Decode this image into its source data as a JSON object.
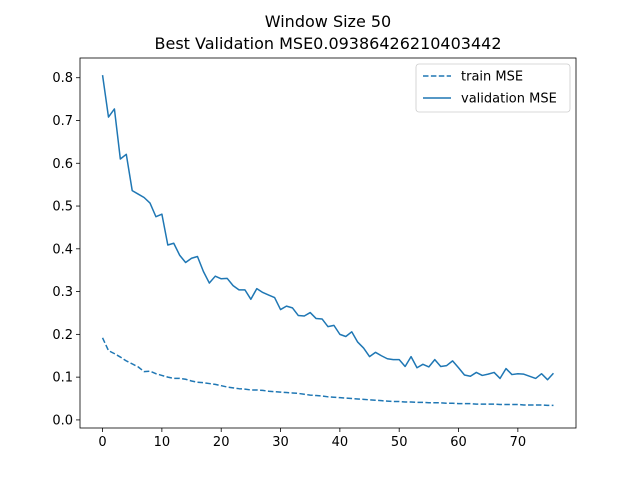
{
  "chart_data": {
    "type": "line",
    "title": "Window Size 50",
    "subtitle": "Best Validation MSE0.09386426210403442",
    "xlabel": "",
    "ylabel": "",
    "xlim": [
      -3.8,
      79.8
    ],
    "ylim": [
      -0.0189,
      0.8461
    ],
    "xticks": [
      0,
      10,
      20,
      30,
      40,
      50,
      60,
      70
    ],
    "yticks": [
      0.0,
      0.1,
      0.2,
      0.3,
      0.4,
      0.5,
      0.6,
      0.7,
      0.8
    ],
    "ytick_labels": [
      "0.0",
      "0.1",
      "0.2",
      "0.3",
      "0.4",
      "0.5",
      "0.6",
      "0.7",
      "0.8"
    ],
    "grid": false,
    "legend_position": "upper-right",
    "series": [
      {
        "name": "train MSE",
        "style": "dashed",
        "color": "#1f77b4",
        "values": [
          0.192,
          0.162,
          0.155,
          0.147,
          0.138,
          0.131,
          0.124,
          0.113,
          0.114,
          0.108,
          0.104,
          0.1,
          0.097,
          0.097,
          0.095,
          0.091,
          0.088,
          0.087,
          0.085,
          0.083,
          0.08,
          0.077,
          0.075,
          0.073,
          0.072,
          0.07,
          0.07,
          0.069,
          0.067,
          0.066,
          0.065,
          0.064,
          0.063,
          0.062,
          0.06,
          0.058,
          0.057,
          0.056,
          0.054,
          0.053,
          0.052,
          0.051,
          0.05,
          0.049,
          0.048,
          0.047,
          0.046,
          0.045,
          0.044,
          0.043,
          0.043,
          0.042,
          0.042,
          0.041,
          0.041,
          0.04,
          0.04,
          0.04,
          0.039,
          0.039,
          0.038,
          0.038,
          0.038,
          0.037,
          0.037,
          0.037,
          0.037,
          0.036,
          0.036,
          0.036,
          0.036,
          0.035,
          0.035,
          0.035,
          0.035,
          0.034,
          0.034
        ]
      },
      {
        "name": "validation MSE",
        "style": "solid",
        "color": "#1f77b4",
        "values": [
          0.806,
          0.708,
          0.727,
          0.61,
          0.621,
          0.536,
          0.528,
          0.52,
          0.507,
          0.475,
          0.481,
          0.409,
          0.413,
          0.385,
          0.368,
          0.378,
          0.382,
          0.347,
          0.32,
          0.336,
          0.33,
          0.331,
          0.314,
          0.304,
          0.304,
          0.282,
          0.307,
          0.298,
          0.292,
          0.286,
          0.258,
          0.266,
          0.262,
          0.244,
          0.243,
          0.251,
          0.237,
          0.236,
          0.218,
          0.221,
          0.2,
          0.195,
          0.206,
          0.182,
          0.168,
          0.148,
          0.158,
          0.15,
          0.143,
          0.141,
          0.141,
          0.125,
          0.148,
          0.122,
          0.13,
          0.124,
          0.141,
          0.125,
          0.127,
          0.138,
          0.122,
          0.105,
          0.102,
          0.111,
          0.104,
          0.107,
          0.111,
          0.097,
          0.12,
          0.106,
          0.108,
          0.107,
          0.102,
          0.097,
          0.108,
          0.094,
          0.109
        ]
      }
    ]
  }
}
